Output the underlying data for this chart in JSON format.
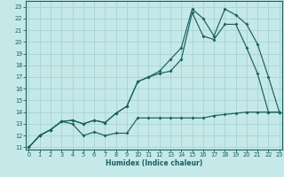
{
  "xlabel": "Humidex (Indice chaleur)",
  "xlim": [
    -0.3,
    23.3
  ],
  "ylim": [
    10.8,
    23.5
  ],
  "yticks": [
    11,
    12,
    13,
    14,
    15,
    16,
    17,
    18,
    19,
    20,
    21,
    22,
    23
  ],
  "xticks": [
    0,
    1,
    2,
    3,
    4,
    5,
    6,
    7,
    8,
    9,
    10,
    11,
    12,
    13,
    14,
    15,
    16,
    17,
    18,
    19,
    20,
    21,
    22,
    23
  ],
  "bg_color": "#c5e8e8",
  "grid_color": "#a8d4d4",
  "line_color": "#1a6060",
  "line1_y": [
    11,
    12,
    12.5,
    13.2,
    13.0,
    12.0,
    12.3,
    12.0,
    12.2,
    12.2,
    13.5,
    13.5,
    13.5,
    13.5,
    13.5,
    13.5,
    13.5,
    13.7,
    13.8,
    13.9,
    14.0,
    14.0,
    14.0,
    14.0
  ],
  "line2_y": [
    11,
    12,
    12.5,
    13.2,
    13.3,
    13.0,
    13.3,
    13.1,
    13.9,
    14.5,
    16.6,
    17.0,
    17.3,
    17.5,
    18.5,
    22.5,
    20.5,
    20.2,
    21.5,
    21.5,
    19.5,
    17.3,
    14.0,
    14.0
  ],
  "line3_y": [
    11,
    12,
    12.5,
    13.2,
    13.3,
    13.0,
    13.3,
    13.1,
    13.9,
    14.5,
    16.6,
    17.0,
    17.5,
    18.5,
    19.5,
    22.8,
    22.0,
    20.5,
    22.8,
    22.3,
    21.5,
    19.8,
    17.0,
    14.0
  ]
}
